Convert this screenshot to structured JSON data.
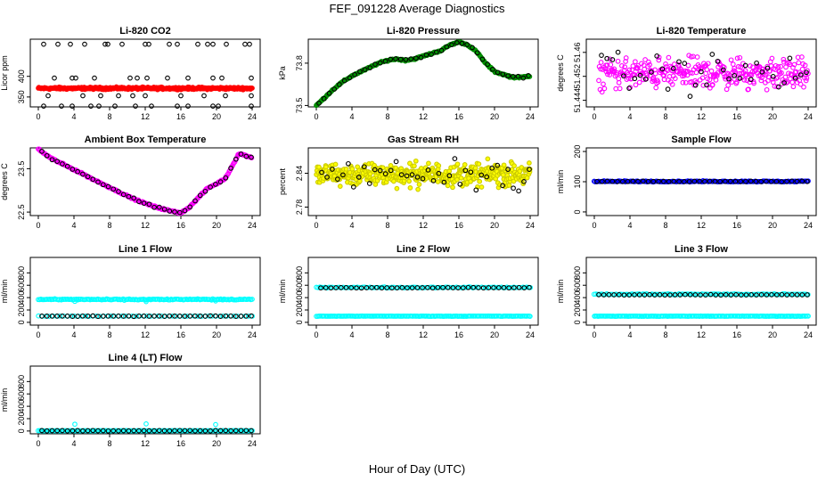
{
  "figure": {
    "title": "FEF_091228  Average Diagnostics",
    "xlabel": "Hour of Day (UTC)"
  },
  "chart_data": [
    {
      "type": "scatter",
      "title": "Li-820 CO2",
      "ylabel": "Licor ppm",
      "xticks": [
        0,
        4,
        8,
        12,
        16,
        20,
        24
      ],
      "yticks": [
        350,
        400
      ],
      "ylim": [
        326,
        490
      ],
      "series": [
        {
          "name": "outliers",
          "color": "#000000",
          "points": [
            [
              0.6,
              478
            ],
            [
              2.2,
              478
            ],
            [
              3.6,
              478
            ],
            [
              5.2,
              478
            ],
            [
              7.5,
              478
            ],
            [
              7.8,
              478
            ],
            [
              9.4,
              478
            ],
            [
              12.0,
              478
            ],
            [
              12.4,
              478
            ],
            [
              14.7,
              478
            ],
            [
              15.6,
              478
            ],
            [
              17.9,
              478
            ],
            [
              19.0,
              478
            ],
            [
              19.6,
              478
            ],
            [
              21.1,
              478
            ],
            [
              23.2,
              478
            ],
            [
              23.7,
              478
            ],
            [
              1.8,
              396
            ],
            [
              3.8,
              396
            ],
            [
              4.2,
              396
            ],
            [
              6.3,
              396
            ],
            [
              10.3,
              396
            ],
            [
              11.1,
              396
            ],
            [
              12.2,
              396
            ],
            [
              14.5,
              396
            ],
            [
              16.8,
              396
            ],
            [
              19.6,
              396
            ],
            [
              20.6,
              396
            ],
            [
              23.9,
              396
            ],
            [
              1.1,
              353
            ],
            [
              5.0,
              353
            ],
            [
              7.0,
              353
            ],
            [
              9.0,
              353
            ],
            [
              10.6,
              353
            ],
            [
              12.0,
              353
            ],
            [
              16.0,
              353
            ],
            [
              18.6,
              353
            ],
            [
              21.0,
              353
            ],
            [
              23.9,
              353
            ],
            [
              0.6,
              328
            ],
            [
              2.6,
              328
            ],
            [
              3.8,
              328
            ],
            [
              5.9,
              328
            ],
            [
              6.8,
              328
            ],
            [
              8.6,
              328
            ],
            [
              10.9,
              328
            ],
            [
              12.7,
              328
            ],
            [
              15.6,
              328
            ],
            [
              16.8,
              328
            ],
            [
              19.6,
              328
            ],
            [
              20.2,
              328
            ],
            [
              23.9,
              328
            ]
          ]
        },
        {
          "name": "CO2",
          "color": "#ff0000",
          "x_start": 0.0,
          "x_end": 24.0,
          "center": 371,
          "spread": 3
        }
      ]
    },
    {
      "type": "scatter",
      "title": "Li-820 Pressure",
      "ylabel": "kPa",
      "xticks": [
        0,
        4,
        8,
        12,
        16,
        20,
        24
      ],
      "yticks": [
        73.5,
        73.8
      ],
      "ylim": [
        73.49,
        73.97
      ],
      "series": [
        {
          "name": "pressure",
          "color": "#00cc00",
          "edge": "#008800",
          "trend": [
            [
              0.0,
              73.5
            ],
            [
              1.0,
              73.56
            ],
            [
              2.0,
              73.62
            ],
            [
              3.0,
              73.67
            ],
            [
              4.0,
              73.71
            ],
            [
              5.0,
              73.74
            ],
            [
              6.0,
              73.77
            ],
            [
              7.0,
              73.8
            ],
            [
              8.0,
              73.82
            ],
            [
              9.0,
              73.83
            ],
            [
              10.0,
              73.82
            ],
            [
              11.0,
              73.83
            ],
            [
              12.0,
              73.85
            ],
            [
              13.0,
              73.87
            ],
            [
              14.0,
              73.89
            ],
            [
              15.0,
              73.93
            ],
            [
              16.0,
              73.95
            ],
            [
              17.0,
              73.93
            ],
            [
              18.0,
              73.88
            ],
            [
              19.0,
              73.8
            ],
            [
              20.0,
              73.74
            ],
            [
              21.0,
              73.72
            ],
            [
              22.0,
              73.7
            ],
            [
              23.0,
              73.7
            ],
            [
              24.0,
              73.71
            ]
          ]
        },
        {
          "name": "averages",
          "color": "#000000",
          "x_start": 0.3,
          "x_end": 23.8,
          "count": 42
        }
      ]
    },
    {
      "type": "scatter",
      "title": "Li-820 Temperature",
      "ylabel": "degrees C",
      "xticks": [
        0,
        4,
        8,
        12,
        16,
        20,
        24
      ],
      "yticks": [
        51.444,
        51.452,
        51.46
      ],
      "tick_labels": [
        "51.444",
        "51.452",
        "51.46"
      ],
      "ylim": [
        51.4418,
        51.4644
      ],
      "series": [
        {
          "name": "temperature",
          "color": "#ff00ff",
          "x_start": 0.5,
          "x_end": 24.0,
          "count": 330,
          "center": 51.453,
          "spread": 0.0055
        },
        {
          "name": "averages",
          "color": "#000000",
          "x_start": 0.8,
          "x_end": 23.8,
          "count": 38
        }
      ]
    },
    {
      "type": "scatter",
      "title": "Ambient Box Temperature",
      "ylabel": "degrees C",
      "xticks": [
        0,
        4,
        8,
        12,
        16,
        20,
        24
      ],
      "yticks": [
        22.5,
        23.5
      ],
      "ylim": [
        22.42,
        23.98
      ],
      "series": [
        {
          "name": "temperature",
          "color": "#ff00ff",
          "trend": [
            [
              0.0,
              23.95
            ],
            [
              1.0,
              23.8
            ],
            [
              2.0,
              23.68
            ],
            [
              3.0,
              23.58
            ],
            [
              4.0,
              23.48
            ],
            [
              5.0,
              23.38
            ],
            [
              6.0,
              23.27
            ],
            [
              7.0,
              23.17
            ],
            [
              8.0,
              23.07
            ],
            [
              9.0,
              22.97
            ],
            [
              10.0,
              22.87
            ],
            [
              11.0,
              22.78
            ],
            [
              12.0,
              22.7
            ],
            [
              13.0,
              22.63
            ],
            [
              14.0,
              22.57
            ],
            [
              15.0,
              22.52
            ],
            [
              16.0,
              22.48
            ],
            [
              17.0,
              22.62
            ],
            [
              18.0,
              22.84
            ],
            [
              19.0,
              23.05
            ],
            [
              20.0,
              23.15
            ],
            [
              21.0,
              23.28
            ],
            [
              22.0,
              23.65
            ],
            [
              22.5,
              23.85
            ],
            [
              23.0,
              23.82
            ],
            [
              24.0,
              23.75
            ]
          ]
        },
        {
          "name": "averages",
          "color": "#000000",
          "x_start": 0.4,
          "x_end": 23.9,
          "count": 42
        }
      ]
    },
    {
      "type": "scatter",
      "title": "Gas Stream RH",
      "ylabel": "percent",
      "xticks": [
        0,
        4,
        8,
        12,
        16,
        20,
        24
      ],
      "yticks": [
        2.78,
        2.84
      ],
      "ylim": [
        2.765,
        2.885
      ],
      "series": [
        {
          "name": "rh",
          "color": "#ffff00",
          "edge": "#cccc00",
          "x_start": 0.0,
          "x_end": 24.0,
          "count": 420,
          "center": 2.838,
          "spread": 0.022
        },
        {
          "name": "averages",
          "color": "#000000",
          "x_start": 0.6,
          "x_end": 23.9,
          "count": 40
        }
      ]
    },
    {
      "type": "scatter",
      "title": "Sample Flow",
      "ylabel": "ml/min",
      "xticks": [
        0,
        4,
        8,
        12,
        16,
        20,
        24
      ],
      "yticks": [
        0,
        100,
        200
      ],
      "ylim": [
        -12,
        212
      ],
      "series": [
        {
          "name": "flow",
          "color": "#0000ff",
          "x_start": 0.0,
          "x_end": 24.0,
          "count": 200,
          "center": 101,
          "spread": 2
        },
        {
          "name": "averages",
          "color": "#000000",
          "x_start": 0.3,
          "x_end": 23.9,
          "count": 42,
          "center": 101
        }
      ]
    },
    {
      "type": "scatter",
      "title": "Line 1 Flow",
      "ylabel": "ml/min",
      "xticks": [
        0,
        4,
        8,
        12,
        16,
        20,
        24
      ],
      "yticks": [
        0,
        200,
        400,
        600,
        800
      ],
      "ylim": [
        -45,
        1050
      ],
      "series": [
        {
          "name": "flow-high",
          "color": "#00ffff",
          "x_start": 0.0,
          "x_end": 24.0,
          "count": 170,
          "center": 370,
          "spread": 10,
          "outliers": [
            [
              4.1,
              340
            ],
            [
              12.1,
              335
            ],
            [
              19.9,
              345
            ]
          ]
        },
        {
          "name": "flow-low",
          "color": "#00ffff",
          "x_start": 0.0,
          "x_end": 24.0,
          "count": 60,
          "center": 100,
          "spread": 3
        },
        {
          "name": "averages",
          "color": "#000000",
          "x_start": 0.4,
          "x_end": 23.9,
          "count": 42,
          "center": 100
        }
      ]
    },
    {
      "type": "scatter",
      "title": "Line 2 Flow",
      "ylabel": "ml/min",
      "xticks": [
        0,
        4,
        8,
        12,
        16,
        20,
        24
      ],
      "yticks": [
        0,
        200,
        400,
        600,
        800
      ],
      "ylim": [
        -45,
        1050
      ],
      "series": [
        {
          "name": "flow-high",
          "color": "#00ffff",
          "x_start": 0.0,
          "x_end": 24.0,
          "count": 120,
          "center": 565,
          "spread": 8
        },
        {
          "name": "flow-low",
          "color": "#00ffff",
          "x_start": 0.0,
          "x_end": 24.0,
          "count": 170,
          "center": 100,
          "spread": 3
        },
        {
          "name": "averages",
          "color": "#000000",
          "x_start": 0.5,
          "x_end": 23.9,
          "count": 42,
          "center": 560
        }
      ]
    },
    {
      "type": "scatter",
      "title": "Line 3 Flow",
      "ylabel": "ml/min",
      "xticks": [
        0,
        4,
        8,
        12,
        16,
        20,
        24
      ],
      "yticks": [
        0,
        200,
        400,
        600,
        800
      ],
      "ylim": [
        -45,
        1050
      ],
      "series": [
        {
          "name": "flow-high",
          "color": "#00ffff",
          "x_start": 0.0,
          "x_end": 24.0,
          "count": 120,
          "center": 455,
          "spread": 8
        },
        {
          "name": "flow-low",
          "color": "#00ffff",
          "x_start": 0.0,
          "x_end": 24.0,
          "count": 170,
          "center": 100,
          "spread": 3
        },
        {
          "name": "averages",
          "color": "#000000",
          "x_start": 0.5,
          "x_end": 23.9,
          "count": 42,
          "center": 445
        }
      ]
    },
    {
      "type": "scatter",
      "title": "Line 4 (LT) Flow",
      "ylabel": "ml/min",
      "xticks": [
        0,
        4,
        8,
        12,
        16,
        20,
        24
      ],
      "yticks": [
        0,
        200,
        400,
        600,
        800
      ],
      "ylim": [
        -45,
        1050
      ],
      "series": [
        {
          "name": "flow",
          "color": "#00ffff",
          "x_start": 0.0,
          "x_end": 24.0,
          "count": 160,
          "center": 5,
          "spread": 2,
          "outliers": [
            [
              4.1,
              110
            ],
            [
              12.1,
              115
            ],
            [
              19.9,
              105
            ]
          ]
        },
        {
          "name": "averages",
          "color": "#000000",
          "x_start": 0.4,
          "x_end": 23.9,
          "count": 42,
          "center": 5
        }
      ]
    }
  ]
}
